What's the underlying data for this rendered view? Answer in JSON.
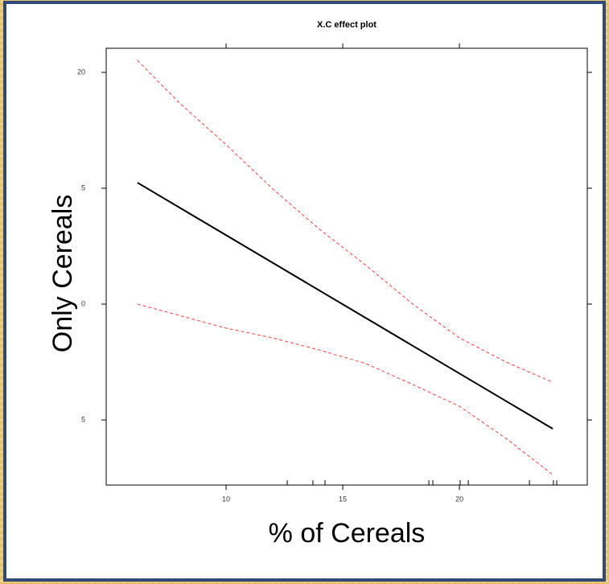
{
  "chart_data": {
    "type": "line",
    "title": "X.C effect plot",
    "xlabel": "% of Cereals",
    "ylabel": "Only Cereals",
    "xlim": [
      4.86,
      25.48
    ],
    "xticks": [
      10,
      15,
      20
    ],
    "ylim": [
      -7.81,
      11.04
    ],
    "yticks": [
      {
        "value": 10,
        "label": "20"
      },
      5,
      0,
      {
        "value": -5,
        "label": "5"
      }
    ],
    "series": [
      {
        "color": "#000000",
        "dashed": false,
        "x": [
          6.2,
          24
        ],
        "values": [
          5.24,
          -5.38
        ]
      },
      {
        "color": "#ff3b3b",
        "dashed": true,
        "x": [
          6.2,
          8,
          10,
          12,
          14,
          16,
          18,
          20,
          22,
          24
        ],
        "values": [
          10.52,
          8.68,
          6.88,
          4.97,
          3.23,
          1.67,
          0,
          -1.46,
          -2.5,
          -3.37
        ]
      },
      {
        "color": "#ff3b3b",
        "dashed": true,
        "x": [
          6.2,
          8,
          10,
          12,
          14,
          16,
          18,
          20,
          22,
          24
        ],
        "values": [
          0,
          -0.49,
          -1.04,
          -1.46,
          -1.98,
          -2.57,
          -3.47,
          -4.41,
          -5.8,
          -7.36
        ]
      }
    ],
    "rug": [
      12.62,
      13.72,
      14.24,
      18.69,
      18.86,
      20.03,
      20.38,
      23,
      24.03,
      24.17
    ]
  }
}
